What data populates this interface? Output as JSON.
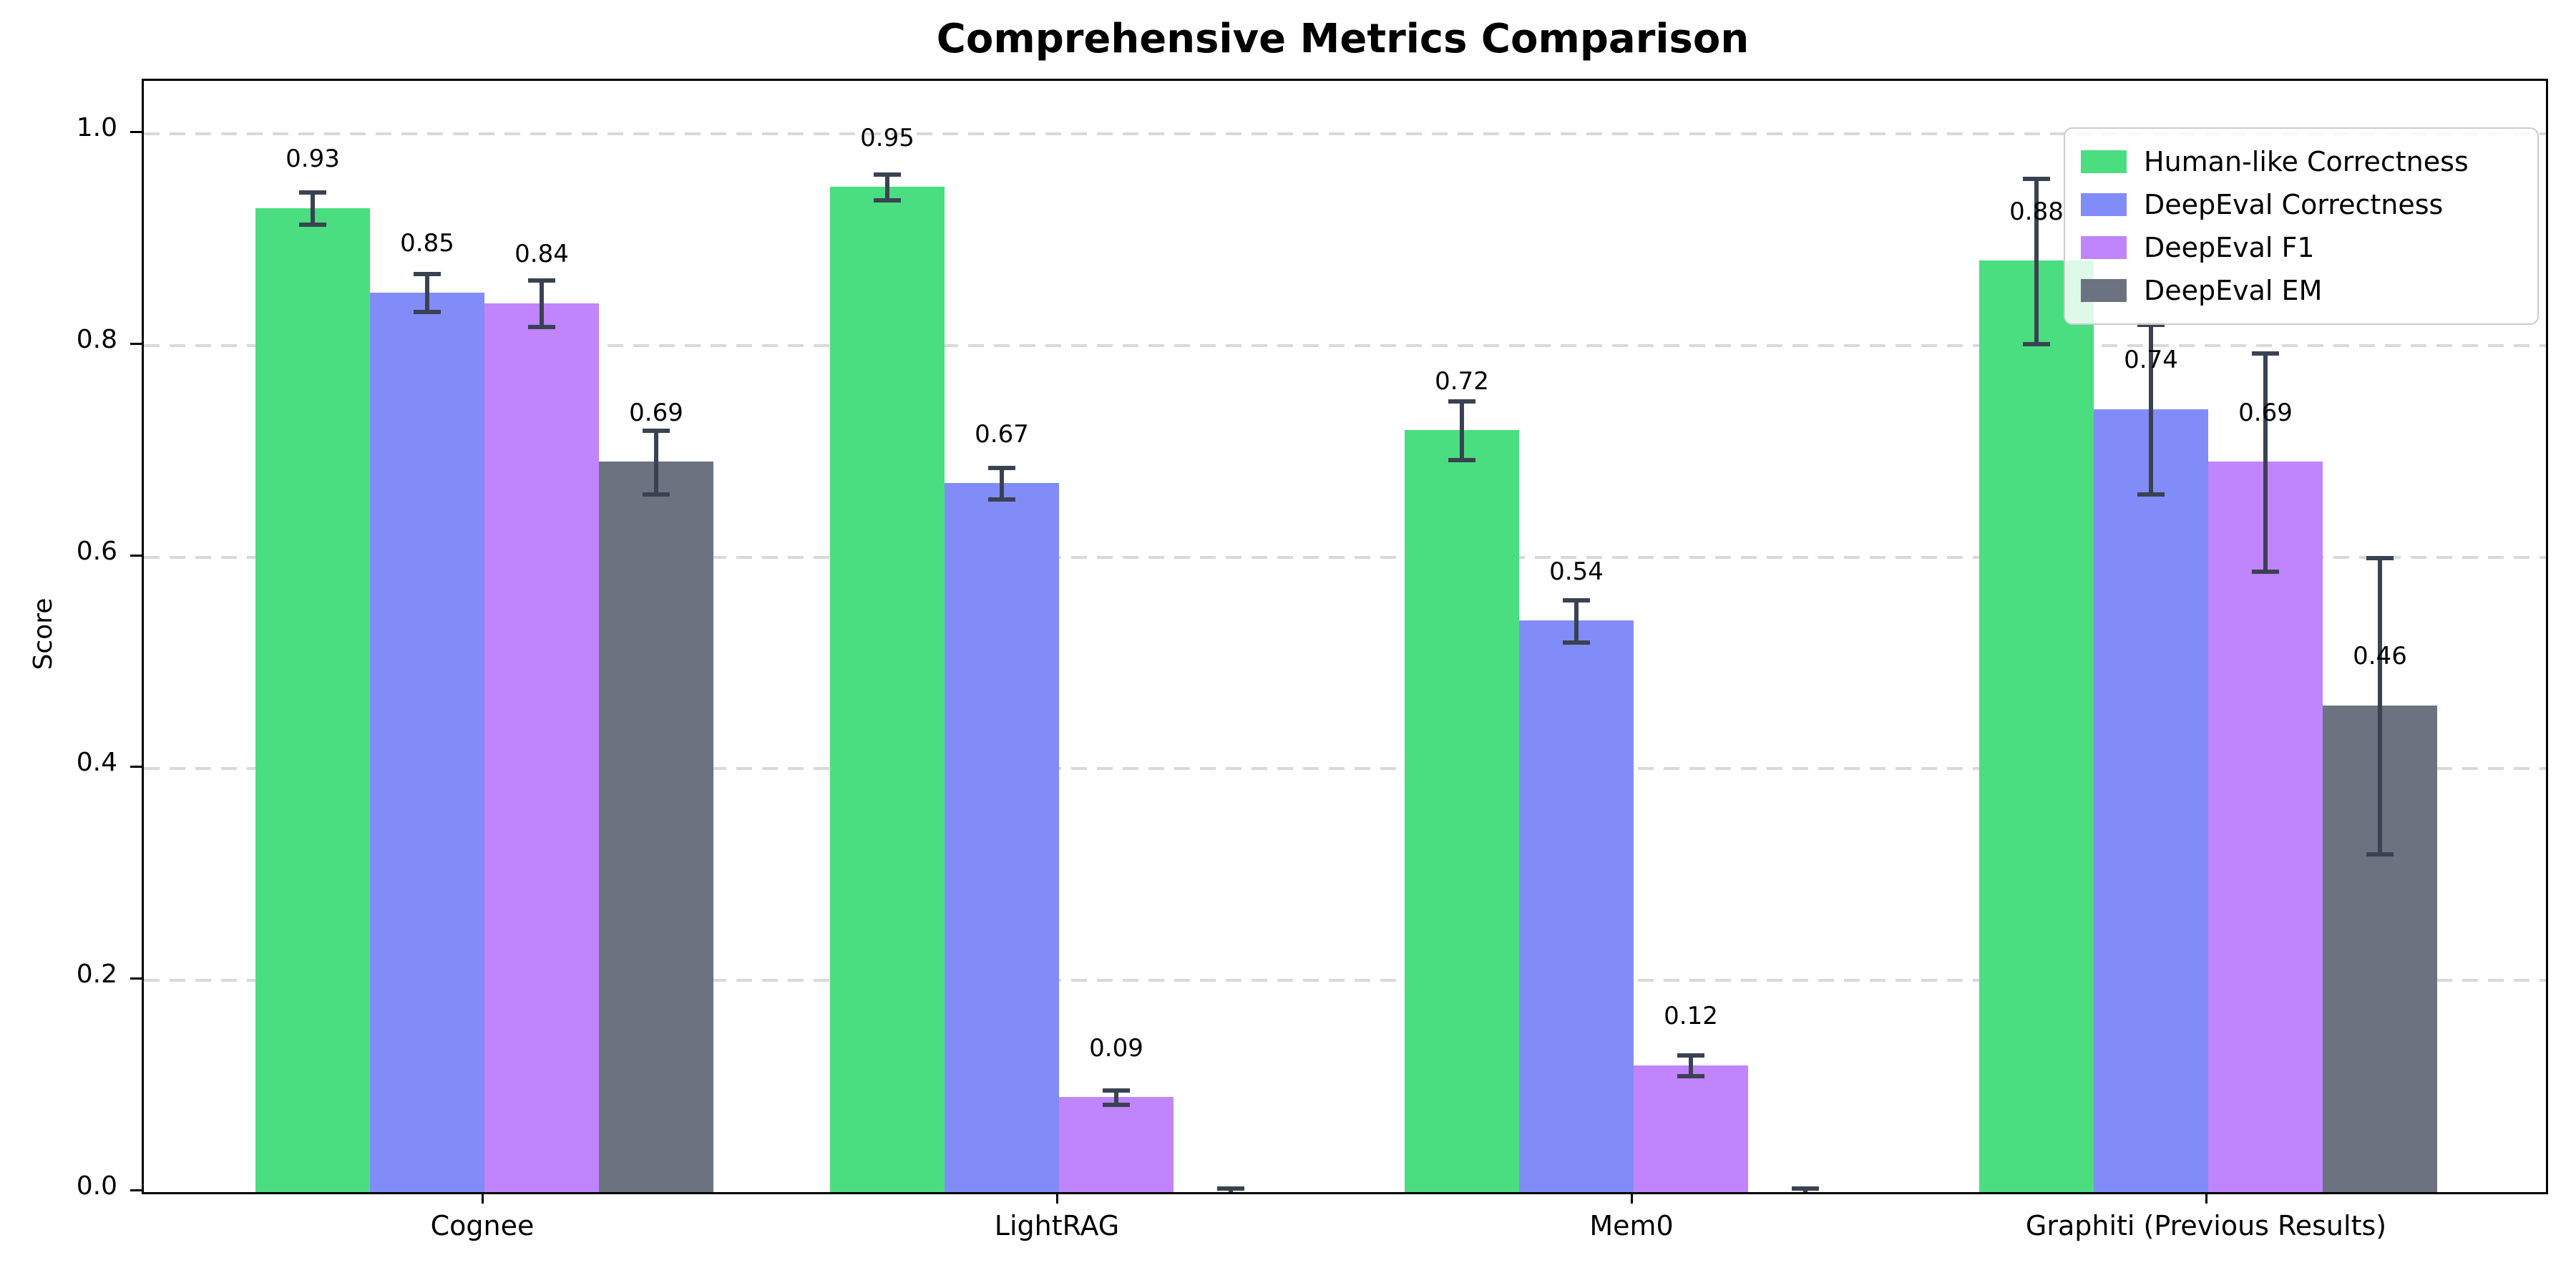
{
  "chart_data": {
    "type": "bar",
    "title": "Comprehensive Metrics Comparison",
    "ylabel": "Score",
    "xlabel": "",
    "categories": [
      "Cognee",
      "LightRAG",
      "Mem0",
      "Graphiti (Previous Results)"
    ],
    "series": [
      {
        "name": "Human-like Correctness",
        "color": "#4ade80",
        "values": [
          0.93,
          0.95,
          0.72,
          0.88
        ],
        "errors": [
          0.015,
          0.012,
          0.028,
          0.078
        ]
      },
      {
        "name": "DeepEval Correctness",
        "color": "#818cf8",
        "values": [
          0.85,
          0.67,
          0.54,
          0.74
        ],
        "errors": [
          0.018,
          0.015,
          0.02,
          0.08
        ]
      },
      {
        "name": "DeepEval F1",
        "color": "#c084fc",
        "values": [
          0.84,
          0.09,
          0.12,
          0.69
        ],
        "errors": [
          0.022,
          0.007,
          0.01,
          0.103
        ]
      },
      {
        "name": "DeepEval EM",
        "color": "#6b7280",
        "values": [
          0.69,
          0.0,
          0.0,
          0.46
        ],
        "errors": [
          0.03,
          0.004,
          0.004,
          0.14
        ]
      }
    ],
    "ytick_labels": [
      "0.0",
      "0.2",
      "0.4",
      "0.6",
      "0.8",
      "1.0"
    ],
    "ytick_values": [
      0.0,
      0.2,
      0.4,
      0.6,
      0.8,
      1.0
    ],
    "ylim": [
      0,
      1.05
    ],
    "grid": "horizontal dashed gridlines at 0.2 intervals",
    "legend_position": "upper right",
    "bar_value_label_format": "two decimals above error bar",
    "error_bar_color": "#3a4252",
    "axis_color": "#000000",
    "gridline_color": "#d9d9d9",
    "background_color": "#ffffff"
  }
}
